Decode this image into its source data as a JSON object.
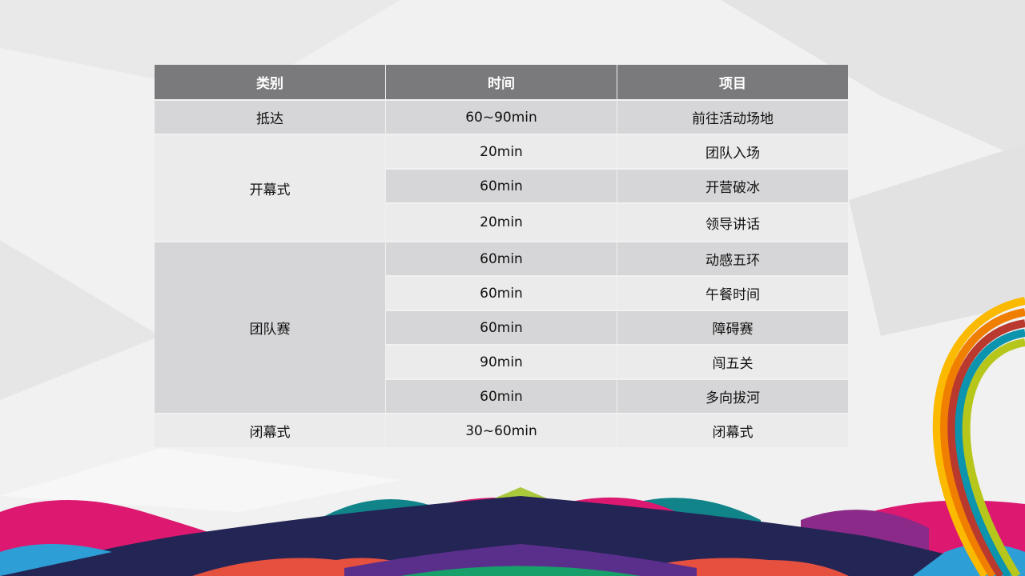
{
  "table": {
    "headers": [
      "类别",
      "时间",
      "项目"
    ],
    "groups": [
      {
        "category": "抵达",
        "rows": [
          {
            "time": "60~90min",
            "item": "前往活动场地"
          }
        ]
      },
      {
        "category": "开幕式",
        "rows": [
          {
            "time": "20min",
            "item": "团队入场"
          },
          {
            "time": "60min",
            "item": "开营破冰"
          },
          {
            "time": "20min",
            "item": "领导讲话"
          }
        ]
      },
      {
        "category": "团队赛",
        "rows": [
          {
            "time": "60min",
            "item": "动感五环"
          },
          {
            "time": "60min",
            "item": "午餐时间"
          },
          {
            "time": "60min",
            "item": "障碍赛"
          },
          {
            "time": "90min",
            "item": "闯五关"
          },
          {
            "time": "60min",
            "item": "多向拔河"
          }
        ]
      },
      {
        "category": "闭幕式",
        "rows": [
          {
            "time": "30~60min",
            "item": "闭幕式"
          }
        ]
      }
    ]
  },
  "colors": {
    "header": "#7a7a7c",
    "row_dark": "#d6d6d8",
    "row_light": "#ebebeb"
  }
}
